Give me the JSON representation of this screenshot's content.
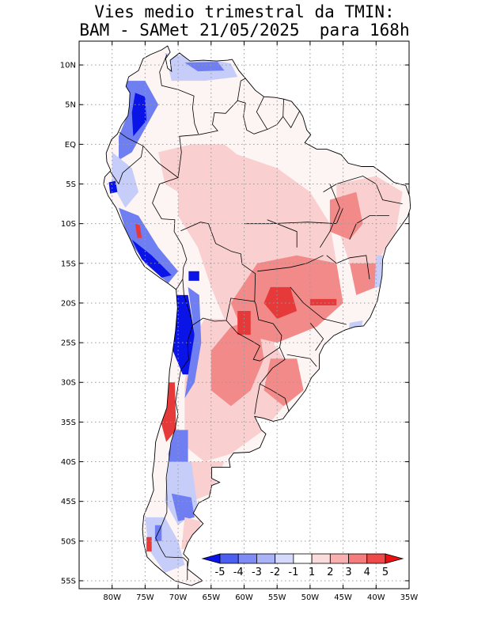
{
  "title": {
    "line1": "Vies medio trimestral da TMIN:",
    "line2": "BAM - SAMet 21/05/2025  para 168h"
  },
  "map": {
    "region": "South America",
    "lon_range": [
      -85,
      -35
    ],
    "lat_range": [
      -56,
      13
    ],
    "lat_ticks": [
      "10N",
      "5N",
      "EQ",
      "5S",
      "10S",
      "15S",
      "20S",
      "25S",
      "30S",
      "35S",
      "40S",
      "45S",
      "50S",
      "55S"
    ],
    "lon_ticks": [
      "80W",
      "75W",
      "70W",
      "65W",
      "60W",
      "55W",
      "50W",
      "45W",
      "40W",
      "35W"
    ]
  },
  "colorbar": {
    "labels": [
      "-5",
      "-4",
      "-3",
      "-2",
      "-1",
      "1",
      "2",
      "3",
      "4",
      "5"
    ],
    "colors": [
      "#0a14e6",
      "#4d5ff0",
      "#7f8cf5",
      "#aab3f8",
      "#d5d9fb",
      "#ffffff",
      "#fbdcdc",
      "#f8b0b0",
      "#f47c7c",
      "#ee4a4a",
      "#e81010"
    ]
  },
  "colors": {
    "ocean": "#ffffff",
    "land_neutral": "#fdf4f4",
    "warm_light": "#f9cfcf",
    "warm_mid": "#f28a8a",
    "warm_strong": "#e63a3a",
    "cool_light": "#c6cdf8",
    "cool_mid": "#6f7ff2",
    "cool_strong": "#0a14e6"
  }
}
